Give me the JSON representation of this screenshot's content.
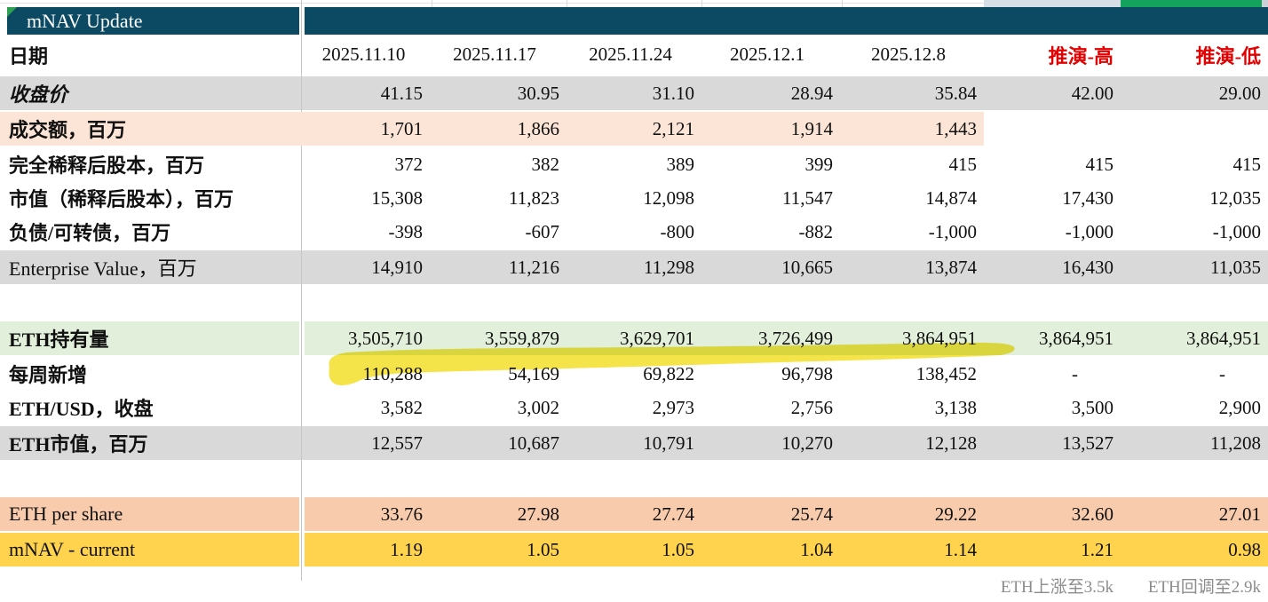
{
  "title": "mNAV Update",
  "colors": {
    "header_bar": "#0c4a64",
    "green_accent_bar": "#13a35d",
    "scenario_red": "#e30000",
    "gray_row": "#d9d9d9",
    "peach_row": "#fce4d6",
    "green_row": "#e2efda",
    "salmon_row": "#f8cbad",
    "gold_row": "#ffd34d",
    "highlighter": "#f3e135",
    "footer_text": "#8c8c8c"
  },
  "date_label": "日期",
  "columns": [
    "2025.11.10",
    "2025.11.17",
    "2025.11.24",
    "2025.12.1",
    "2025.12.8",
    "推演-高",
    "推演-低"
  ],
  "rows": [
    {
      "name": "close-price",
      "label": "收盘价",
      "style": "gray",
      "italic": true,
      "values": [
        "41.15",
        "30.95",
        "31.10",
        "28.94",
        "35.84",
        "42.00",
        "29.00"
      ]
    },
    {
      "name": "volume",
      "label": "成交额，百万",
      "style": "peach",
      "fill_span": 5,
      "values": [
        "1,701",
        "1,866",
        "2,121",
        "1,914",
        "1,443",
        "",
        ""
      ]
    },
    {
      "name": "diluted-shares",
      "label": "完全稀释后股本，百万",
      "style": "white",
      "values": [
        "372",
        "382",
        "389",
        "399",
        "415",
        "415",
        "415"
      ]
    },
    {
      "name": "market-cap",
      "label": "市值（稀释后股本），百万",
      "style": "white",
      "values": [
        "15,308",
        "11,823",
        "12,098",
        "11,547",
        "14,874",
        "17,430",
        "12,035"
      ]
    },
    {
      "name": "debt-convertible",
      "label": "负债/可转债，百万",
      "style": "white",
      "values": [
        "-398",
        "-607",
        "-800",
        "-882",
        "-1,000",
        "-1,000",
        "-1,000"
      ]
    },
    {
      "name": "enterprise-value",
      "label": "Enterprise Value，百万",
      "style": "gray",
      "plain": true,
      "values": [
        "14,910",
        "11,216",
        "11,298",
        "10,665",
        "13,874",
        "16,430",
        "11,035"
      ]
    },
    {
      "name": "spacer-1",
      "label": "",
      "style": "white",
      "values": [
        "",
        "",
        "",
        "",
        "",
        "",
        ""
      ]
    },
    {
      "name": "eth-holdings",
      "label": "ETH持有量",
      "style": "green",
      "values": [
        "3,505,710",
        "3,559,879",
        "3,629,701",
        "3,726,499",
        "3,864,951",
        "3,864,951",
        "3,864,951"
      ]
    },
    {
      "name": "weekly-added",
      "label": "每周新增",
      "style": "white",
      "highlighted": true,
      "values": [
        "110,288",
        "54,169",
        "69,822",
        "96,798",
        "138,452",
        "-",
        "-"
      ]
    },
    {
      "name": "eth-usd-close",
      "label": "ETH/USD，收盘",
      "style": "white",
      "values": [
        "3,582",
        "3,002",
        "2,973",
        "2,756",
        "3,138",
        "3,500",
        "2,900"
      ]
    },
    {
      "name": "eth-market-value",
      "label": "ETH市值，百万",
      "style": "gray",
      "values": [
        "12,557",
        "10,687",
        "10,791",
        "10,270",
        "12,128",
        "13,527",
        "11,208"
      ]
    },
    {
      "name": "spacer-2",
      "label": "",
      "style": "white",
      "values": [
        "",
        "",
        "",
        "",
        "",
        "",
        ""
      ]
    },
    {
      "name": "eth-per-share",
      "label": "ETH per share",
      "style": "salmon",
      "plain": true,
      "values": [
        "33.76",
        "27.98",
        "27.74",
        "25.74",
        "29.22",
        "32.60",
        "27.01"
      ]
    },
    {
      "name": "mnav-current",
      "label": "mNAV - current",
      "style": "gold",
      "plain": true,
      "values": [
        "1.19",
        "1.05",
        "1.05",
        "1.04",
        "1.14",
        "1.21",
        "0.98"
      ]
    }
  ],
  "footer": {
    "scenario_high_note": "ETH上涨至3.5k",
    "scenario_low_note": "ETH回调至2.9k"
  }
}
